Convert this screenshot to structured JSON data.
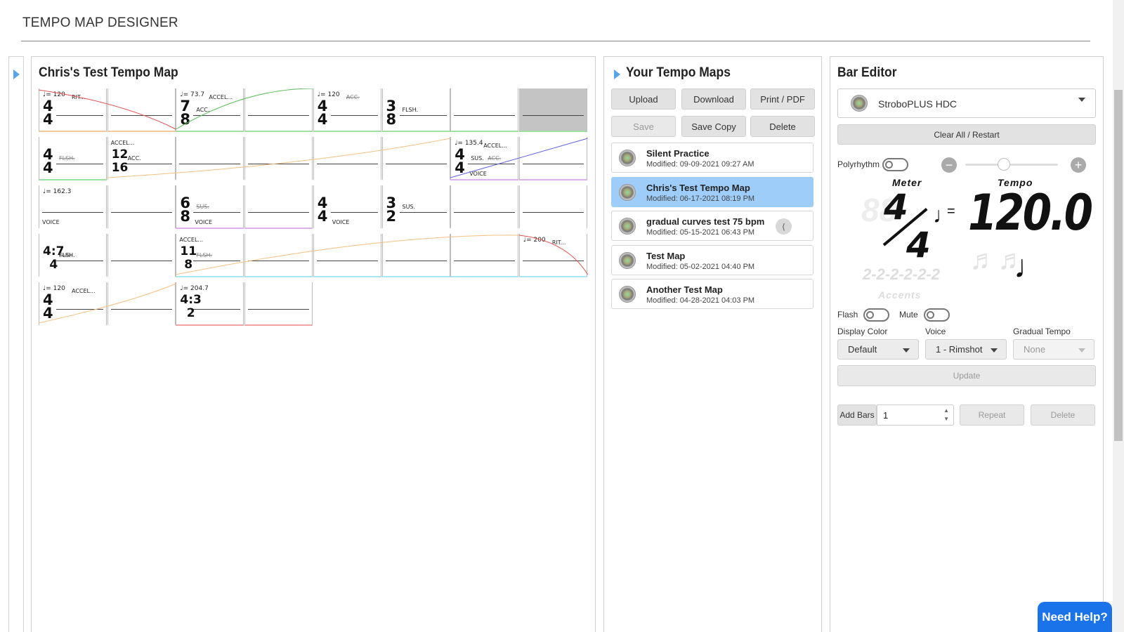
{
  "page": {
    "title": "TEMPO MAP DESIGNER"
  },
  "tempo_map": {
    "title": "Chris's Test Tempo Map",
    "bars": [
      {
        "ts_num": "4",
        "ts_den": "4",
        "tempo": "120",
        "labels": [
          "RIT..."
        ],
        "color": "#f5c99a"
      },
      {
        "ts_num": "",
        "ts_den": "",
        "labels": [],
        "color": "#f5c99a"
      },
      {
        "ts_num": "7",
        "ts_den": "8",
        "tempo": "73.7",
        "labels": [
          "ACCEL...",
          "ACC."
        ],
        "color": "#9ee09e"
      },
      {
        "ts_num": "",
        "ts_den": "",
        "labels": [],
        "color": "#9ee09e"
      },
      {
        "ts_num": "4",
        "ts_den": "4",
        "tempo": "120",
        "labels": [
          "ACC."
        ],
        "color": "#9ee09e"
      },
      {
        "ts_num": "3",
        "ts_den": "8",
        "labels": [
          "FLSH."
        ],
        "color": "#9ee09e"
      },
      {
        "ts_num": "",
        "ts_den": "",
        "labels": [],
        "color": "#9ee09e"
      },
      {
        "ts_num": "",
        "ts_den": "",
        "labels": [],
        "color": "#9ee09e"
      },
      {
        "ts_num": "4",
        "ts_den": "4",
        "labels": [
          "FLSH."
        ],
        "color": "#9ee09e"
      },
      {
        "ts_num": "12",
        "ts_den": "16",
        "labels": [
          "ACCEL...",
          "ACC."
        ],
        "color": "#fff"
      },
      {
        "ts_num": "",
        "ts_den": "",
        "labels": [],
        "color": "#fff"
      },
      {
        "ts_num": "",
        "ts_den": "",
        "labels": [],
        "color": "#fff"
      },
      {
        "ts_num": "",
        "ts_den": "",
        "labels": [],
        "color": "#fff"
      },
      {
        "ts_num": "",
        "ts_den": "",
        "labels": [],
        "color": "#fff"
      },
      {
        "ts_num": "4",
        "ts_den": "4",
        "tempo": "135.4",
        "labels": [
          "ACCEL...",
          "SUS.",
          "ACC.",
          "VOICE"
        ],
        "color": "#e0b0f0"
      },
      {
        "ts_num": "",
        "ts_den": "",
        "labels": [],
        "color": "#e0b0f0"
      },
      {
        "ts_num": "",
        "ts_den": "",
        "tempo": "162.3",
        "labels": [
          "VOICE"
        ],
        "color": "#fff"
      },
      {
        "ts_num": "",
        "ts_den": "",
        "labels": [],
        "color": "#fff"
      },
      {
        "ts_num": "6",
        "ts_den": "8",
        "labels": [
          "SUS.",
          "VOICE"
        ],
        "color": "#e0b0f0"
      },
      {
        "ts_num": "",
        "ts_den": "",
        "labels": [],
        "color": "#e0b0f0"
      },
      {
        "ts_num": "4",
        "ts_den": "4",
        "labels": [
          "VOICE"
        ],
        "color": "#fff"
      },
      {
        "ts_num": "3",
        "ts_den": "2",
        "labels": [
          "SUS."
        ],
        "color": "#fff"
      },
      {
        "ts_num": "",
        "ts_den": "",
        "labels": [],
        "color": "#fff"
      },
      {
        "ts_num": "",
        "ts_den": "",
        "labels": [],
        "color": "#fff"
      },
      {
        "ts_num": "4:7",
        "ts_den": "4",
        "labels": [
          "SUS.",
          "FLSH."
        ],
        "color": "#fff"
      },
      {
        "ts_num": "",
        "ts_den": "",
        "labels": [],
        "color": "#fff"
      },
      {
        "ts_num": "11",
        "ts_den": "8",
        "labels": [
          "ACCEL...",
          "FLSH."
        ],
        "color": "#a8e8f0"
      },
      {
        "ts_num": "",
        "ts_den": "",
        "labels": [],
        "color": "#a8e8f0"
      },
      {
        "ts_num": "",
        "ts_den": "",
        "labels": [],
        "color": "#a8e8f0"
      },
      {
        "ts_num": "",
        "ts_den": "",
        "labels": [],
        "color": "#a8e8f0"
      },
      {
        "ts_num": "",
        "ts_den": "",
        "labels": [],
        "color": "#a8e8f0"
      },
      {
        "ts_num": "",
        "ts_den": "",
        "tempo": "200",
        "labels": [
          "RIT..."
        ],
        "color": "#a8e8f0"
      },
      {
        "ts_num": "4",
        "ts_den": "4",
        "tempo": "120",
        "labels": [
          "ACCEL..."
        ],
        "color": "#fff"
      },
      {
        "ts_num": "",
        "ts_den": "",
        "labels": [],
        "color": "#fff"
      },
      {
        "ts_num": "4:3",
        "ts_den": "2",
        "tempo": "204.7",
        "labels": [],
        "color": "#f5a5a5"
      },
      {
        "ts_num": "",
        "ts_den": "",
        "labels": [],
        "color": "#f5a5a5"
      }
    ]
  },
  "your_maps": {
    "title": "Your Tempo Maps",
    "buttons": {
      "upload": "Upload",
      "download": "Download",
      "print": "Print / PDF",
      "save": "Save",
      "save_copy": "Save Copy",
      "delete": "Delete"
    },
    "items": [
      {
        "name": "Silent Practice",
        "modified": "Modified: 09-09-2021 09:27 AM"
      },
      {
        "name": "Chris's Test Tempo Map",
        "modified": "Modified: 06-17-2021 08:19 PM"
      },
      {
        "name": "gradual curves test 75 bpm",
        "modified": "Modified: 05-15-2021 06:43 PM"
      },
      {
        "name": "Test Map",
        "modified": "Modified: 05-02-2021 04:40 PM"
      },
      {
        "name": "Another Test Map",
        "modified": "Modified: 04-28-2021 04:03 PM"
      }
    ]
  },
  "bar_editor": {
    "title": "Bar Editor",
    "device": "StroboPLUS HDC",
    "clear_label": "Clear All / Restart",
    "polyrhythm_label": "Polyrhythm",
    "meter_label": "Meter",
    "tempo_label": "Tempo",
    "meter_num": "4",
    "meter_den": "4",
    "tempo_value": "120.0",
    "accents_label": "Accents",
    "accents_pattern": "2-2-2-2-2-2",
    "flash_label": "Flash",
    "mute_label": "Mute",
    "display_color_label": "Display Color",
    "display_color_value": "Default",
    "voice_label": "Voice",
    "voice_value": "1 - Rimshot",
    "gradual_label": "Gradual Tempo",
    "gradual_value": "None",
    "update_label": "Update",
    "add_bars_label": "Add Bars",
    "add_bars_value": "1",
    "repeat_label": "Repeat",
    "delete_label": "Delete"
  },
  "help": {
    "label": "Need Help?"
  }
}
